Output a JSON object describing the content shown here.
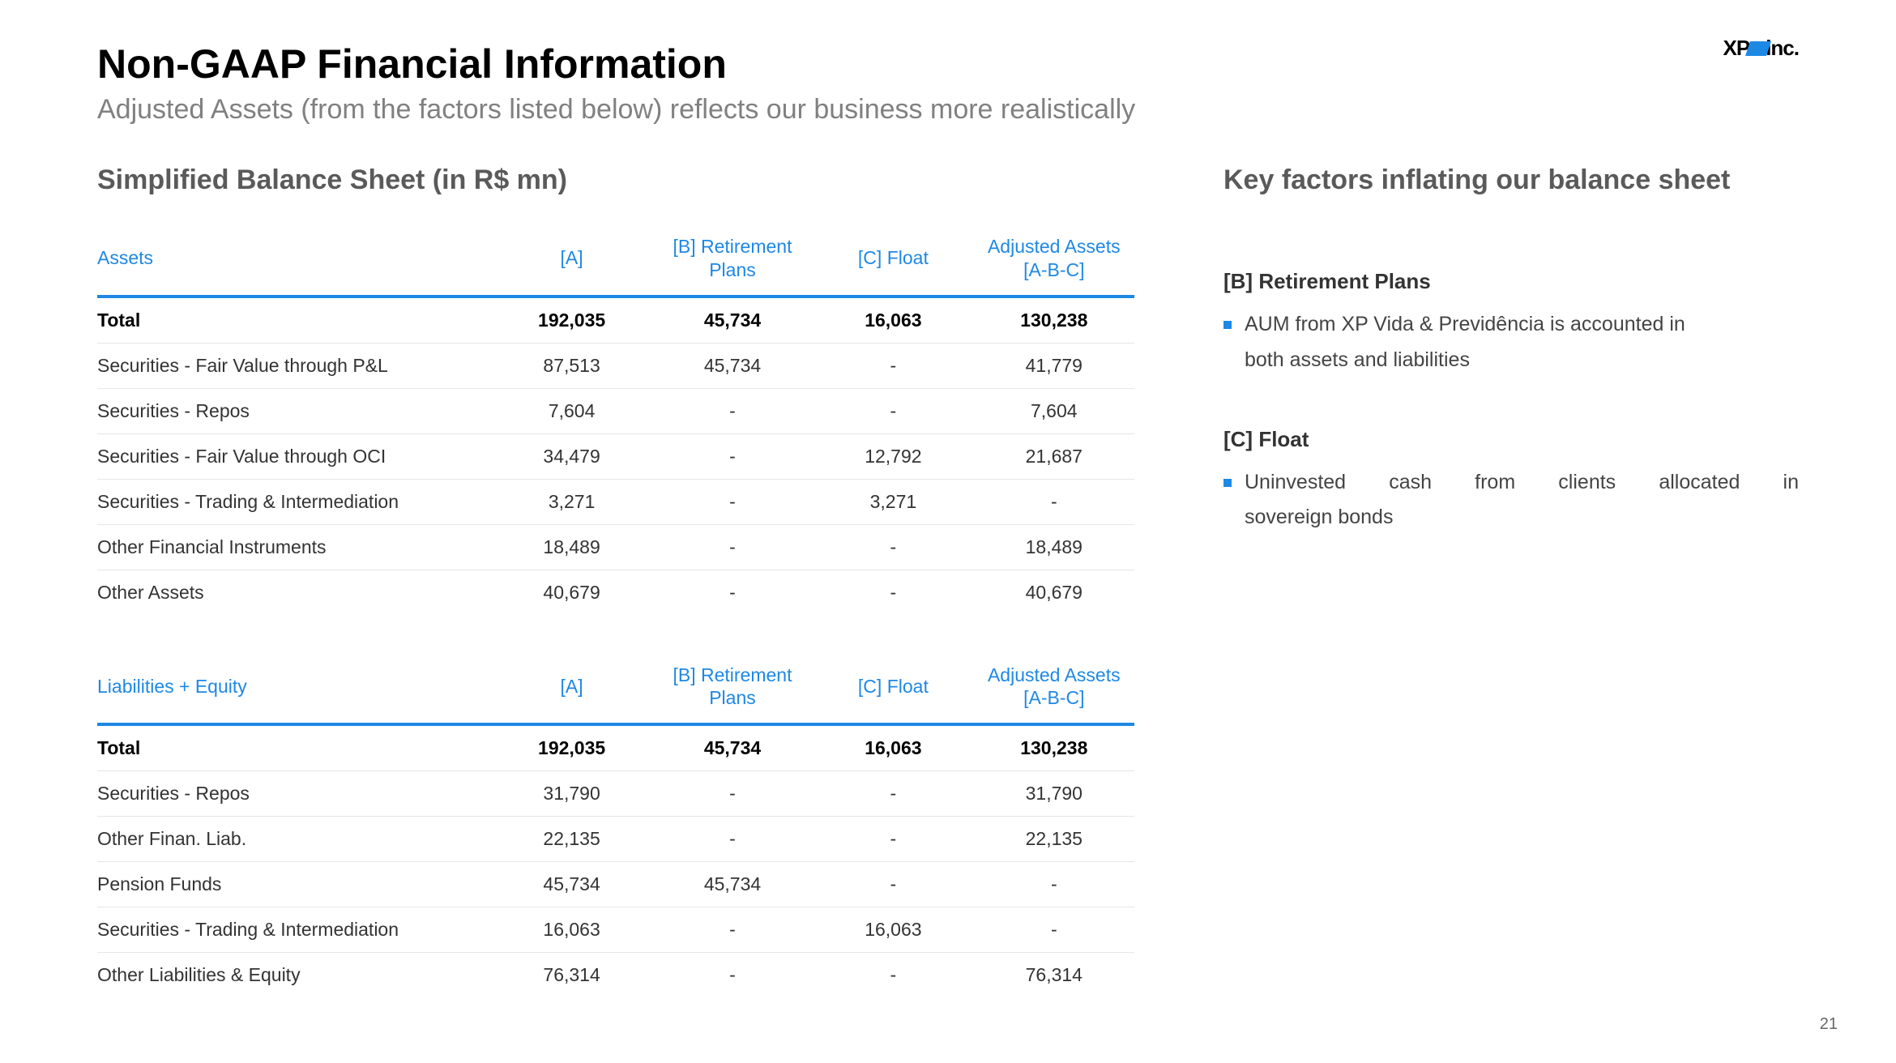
{
  "logo": {
    "prefix": "XP",
    "suffix": "inc."
  },
  "title": "Non-GAAP Financial Information",
  "subtitle": "Adjusted Assets (from the factors listed below) reflects our business more realistically",
  "pageNumber": "21",
  "left": {
    "heading": "Simplified Balance Sheet (in R$ mn)",
    "columns": {
      "a": "[A]",
      "b": "[B] Retirement Plans",
      "c": "[C] Float",
      "adj": "Adjusted Assets [A-B-C]"
    },
    "assets": {
      "header": "Assets",
      "rows": [
        {
          "label": "Total",
          "a": "192,035",
          "b": "45,734",
          "c": "16,063",
          "adj": "130,238",
          "total": true
        },
        {
          "label": "Securities - Fair Value through P&L",
          "a": "87,513",
          "b": "45,734",
          "c": "-",
          "adj": "41,779"
        },
        {
          "label": "Securities - Repos",
          "a": "7,604",
          "b": "-",
          "c": "-",
          "adj": "7,604"
        },
        {
          "label": "Securities - Fair Value through OCI",
          "a": "34,479",
          "b": "-",
          "c": "12,792",
          "adj": "21,687"
        },
        {
          "label": "Securities - Trading & Intermediation",
          "a": "3,271",
          "b": "-",
          "c": "3,271",
          "adj": "-"
        },
        {
          "label": "Other Financial Instruments",
          "a": "18,489",
          "b": "-",
          "c": "-",
          "adj": "18,489"
        },
        {
          "label": "Other Assets",
          "a": "40,679",
          "b": "-",
          "c": "-",
          "adj": "40,679"
        }
      ]
    },
    "liabilities": {
      "header": "Liabilities + Equity",
      "rows": [
        {
          "label": "Total",
          "a": "192,035",
          "b": "45,734",
          "c": "16,063",
          "adj": "130,238",
          "total": true
        },
        {
          "label": "Securities - Repos",
          "a": "31,790",
          "b": "-",
          "c": "-",
          "adj": "31,790"
        },
        {
          "label": "Other Finan. Liab.",
          "a": "22,135",
          "b": "-",
          "c": "-",
          "adj": "22,135"
        },
        {
          "label": "Pension Funds",
          "a": "45,734",
          "b": "45,734",
          "c": "-",
          "adj": "-"
        },
        {
          "label": "Securities - Trading & Intermediation",
          "a": "16,063",
          "b": "-",
          "c": "16,063",
          "adj": "-"
        },
        {
          "label": "Other Liabilities & Equity",
          "a": "76,314",
          "b": "-",
          "c": "-",
          "adj": "76,314"
        }
      ]
    }
  },
  "right": {
    "heading": "Key factors inflating our balance sheet",
    "factors": [
      {
        "title": "[B] Retirement Plans",
        "bullets": [
          {
            "line1": "AUM from XP Vida & Previdência is accounted in",
            "line2": "both assets and liabilities"
          }
        ]
      },
      {
        "title": "[C] Float",
        "bullets": [
          {
            "line1": "Uninvested cash from clients allocated in",
            "line2": "sovereign bonds",
            "justify": true
          }
        ]
      }
    ]
  }
}
